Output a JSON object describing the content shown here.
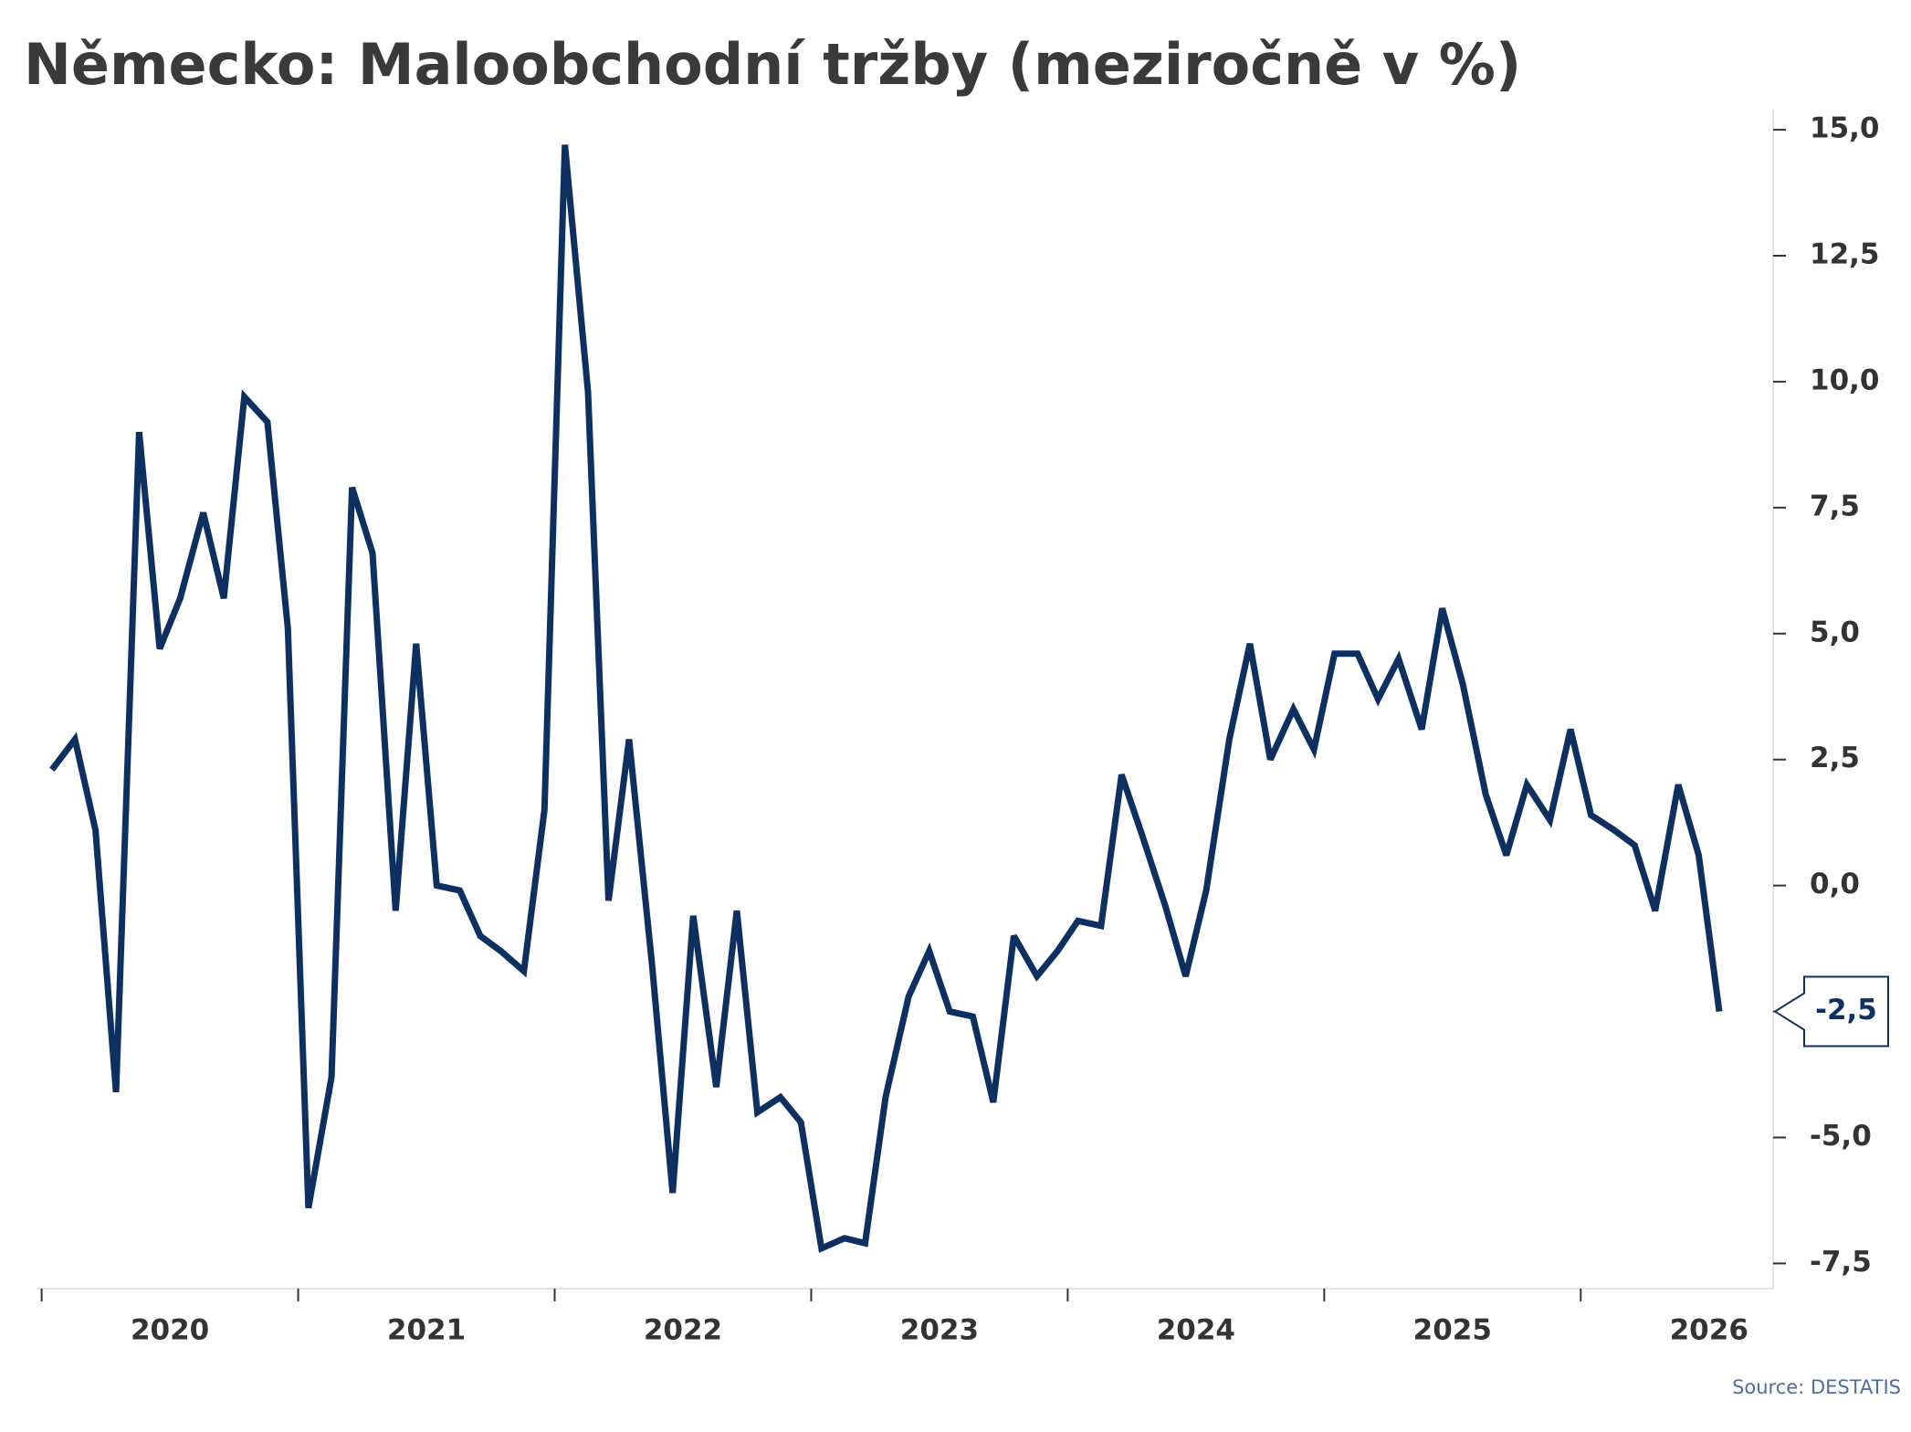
{
  "chart_data": {
    "type": "line",
    "title": "Německo: Maloobchodní tržby (meziročně v %)",
    "source": "Source: DESTATIS",
    "color": "#0d3060",
    "x": [
      2020.04,
      2020.13,
      2020.21,
      2020.29,
      2020.38,
      2020.46,
      2020.54,
      2020.63,
      2020.71,
      2020.79,
      2020.88,
      2020.96,
      2021.04,
      2021.13,
      2021.21,
      2021.29,
      2021.38,
      2021.46,
      2021.54,
      2021.63,
      2021.71,
      2021.79,
      2021.88,
      2021.96,
      2022.04,
      2022.13,
      2022.21,
      2022.29,
      2022.38,
      2022.46,
      2022.54,
      2022.63,
      2022.71,
      2022.79,
      2022.88,
      2022.96,
      2023.04,
      2023.13,
      2023.21,
      2023.29,
      2023.38,
      2023.46,
      2023.54,
      2023.63,
      2023.71,
      2023.79,
      2023.88,
      2023.96,
      2024.04,
      2024.13,
      2024.21,
      2024.29,
      2024.38,
      2024.46,
      2024.54,
      2024.63,
      2024.71,
      2024.79,
      2024.88,
      2024.96,
      2025.04,
      2025.13,
      2025.21,
      2025.29,
      2025.38,
      2025.46,
      2025.54,
      2025.63,
      2025.71,
      2025.79,
      2025.88,
      2025.96,
      2026.04,
      2026.13,
      2026.21,
      2026.29,
      2026.38,
      2026.46,
      2026.54
    ],
    "values": [
      2.3,
      2.9,
      1.1,
      -4.1,
      9.0,
      4.7,
      5.7,
      7.4,
      5.7,
      9.7,
      9.2,
      5.1,
      -6.4,
      -3.8,
      7.9,
      6.6,
      -0.5,
      4.8,
      0.0,
      -0.1,
      -1.0,
      -1.3,
      -1.7,
      1.5,
      14.7,
      9.8,
      -0.3,
      2.9,
      -1.6,
      -6.1,
      -0.6,
      -4.0,
      -0.5,
      -4.5,
      -4.2,
      -4.7,
      -7.2,
      -7.0,
      -7.1,
      -4.2,
      -2.2,
      -1.3,
      -2.5,
      -2.6,
      -4.3,
      -1.0,
      -1.8,
      -1.3,
      -0.7,
      -0.8,
      2.2,
      1.0,
      -0.4,
      -1.8,
      -0.1,
      2.9,
      4.8,
      2.5,
      3.5,
      2.7,
      4.6,
      4.6,
      3.7,
      4.5,
      3.1,
      5.5,
      4.0,
      1.8,
      0.6,
      2.0,
      1.3,
      3.1,
      1.4,
      1.1,
      0.8,
      -0.5,
      2.0,
      0.6,
      -2.5
    ],
    "value_labels": [
      null,
      null,
      null,
      null,
      null,
      null,
      null,
      null,
      null,
      null,
      null,
      null,
      null,
      null,
      null,
      null,
      null,
      null,
      null,
      null,
      null,
      null,
      null,
      null,
      null,
      null,
      null,
      null,
      null,
      null,
      null,
      null,
      null,
      null,
      null,
      null,
      null,
      null,
      null,
      null,
      null,
      null,
      null,
      null,
      null,
      null,
      null,
      null,
      null,
      null,
      null,
      null,
      null,
      null,
      null,
      null,
      null,
      null,
      null,
      null,
      null,
      null,
      null,
      null,
      null,
      null,
      null,
      null,
      null,
      null,
      null,
      null,
      null,
      null,
      null,
      null,
      null,
      null,
      "-2,5"
    ],
    "xlim": [
      2019.98,
      2026.75
    ],
    "xticks": [
      2020,
      2021,
      2022,
      2023,
      2024,
      2025,
      2026
    ],
    "ylim": [
      -8,
      15.4
    ],
    "yticks": [
      {
        "value": -7.5,
        "label": "-7,5"
      },
      {
        "value": -5,
        "label": "-5,0"
      },
      {
        "value": -2.5,
        "label": "-2,5"
      },
      {
        "value": 0,
        "label": "0,0"
      },
      {
        "value": 2.5,
        "label": "2,5"
      },
      {
        "value": 5,
        "label": "5,0"
      },
      {
        "value": 7.5,
        "label": "7,5"
      },
      {
        "value": 10,
        "label": "10,0"
      },
      {
        "value": 12.5,
        "label": "12,5"
      },
      {
        "value": 15,
        "label": "15,0"
      }
    ]
  }
}
